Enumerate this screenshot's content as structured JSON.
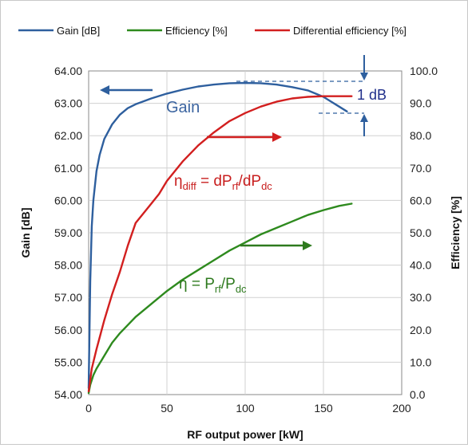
{
  "chart_data": {
    "type": "line",
    "legend": [
      {
        "label": "Gain [dB]",
        "color": "#2e5f9e"
      },
      {
        "label": "Efficiency [%]",
        "color": "#2e8a1e"
      },
      {
        "label": "Differential efficiency [%]",
        "color": "#d21f1f"
      }
    ],
    "legend_position": "top",
    "grid": true,
    "xlabel": "RF output power [kW]",
    "ylabel_left": "Gain [dB]",
    "ylabel_right": "Efficiency [%]",
    "xlim": [
      0,
      200
    ],
    "ylim_left": [
      54.0,
      64.0
    ],
    "ylim_right": [
      0.0,
      100.0
    ],
    "x_ticks": [
      "0",
      "50",
      "100",
      "150",
      "200"
    ],
    "y_left_ticks": [
      "54.00",
      "55.00",
      "56.00",
      "57.00",
      "58.00",
      "59.00",
      "60.00",
      "61.00",
      "62.00",
      "63.00",
      "64.00"
    ],
    "y_right_ticks": [
      "0.0",
      "10.0",
      "20.0",
      "30.0",
      "40.0",
      "50.0",
      "60.0",
      "70.0",
      "80.0",
      "90.0",
      "100.0"
    ],
    "series": [
      {
        "name": "Gain [dB]",
        "axis": "left",
        "color": "#2e5f9e",
        "x": [
          0,
          1,
          2,
          3,
          5,
          7,
          10,
          15,
          20,
          25,
          30,
          40,
          50,
          60,
          70,
          80,
          90,
          100,
          110,
          120,
          130,
          140,
          150,
          155,
          160,
          165
        ],
        "y": [
          54.2,
          57.5,
          59.2,
          60.0,
          60.9,
          61.4,
          61.9,
          62.35,
          62.65,
          62.85,
          62.97,
          63.15,
          63.3,
          63.42,
          63.52,
          63.58,
          63.62,
          63.63,
          63.62,
          63.58,
          63.5,
          63.4,
          63.2,
          63.05,
          62.9,
          62.75
        ]
      },
      {
        "name": "Efficiency [%]",
        "axis": "right",
        "color": "#2e8a1e",
        "x": [
          0,
          1,
          3,
          5,
          10,
          15,
          20,
          30,
          40,
          50,
          60,
          70,
          80,
          90,
          100,
          110,
          120,
          130,
          140,
          150,
          160,
          168
        ],
        "y": [
          0.5,
          3,
          6,
          8,
          12,
          16,
          19,
          24,
          28,
          32,
          35.5,
          38.5,
          41.5,
          44.5,
          47,
          49.5,
          51.5,
          53.5,
          55.5,
          57,
          58.3,
          59
        ]
      },
      {
        "name": "Differential efficiency [%]",
        "axis": "right",
        "color": "#d21f1f",
        "x": [
          0,
          2,
          5,
          10,
          15,
          20,
          25,
          30,
          40,
          45,
          50,
          60,
          70,
          80,
          90,
          100,
          110,
          120,
          130,
          140,
          150,
          160,
          168
        ],
        "y": [
          1,
          8,
          14,
          23,
          31,
          38,
          46,
          53,
          59,
          62,
          66,
          72,
          77,
          81,
          84.5,
          87,
          89,
          90.5,
          91.5,
          92,
          92.2,
          92.2,
          92.2
        ]
      }
    ],
    "annotations": {
      "gain_label": "Gain",
      "one_db_label": "1 dB",
      "eta_diff": {
        "eta": "η",
        "sub1": "diff",
        "eq": " = dP",
        "sub2": "rf",
        "slash": "/dP",
        "sub3": "dc"
      },
      "eta": {
        "eta": "η",
        "eq": " = P",
        "sub1": "rf",
        "slash": "/P",
        "sub2": "dc"
      }
    }
  }
}
